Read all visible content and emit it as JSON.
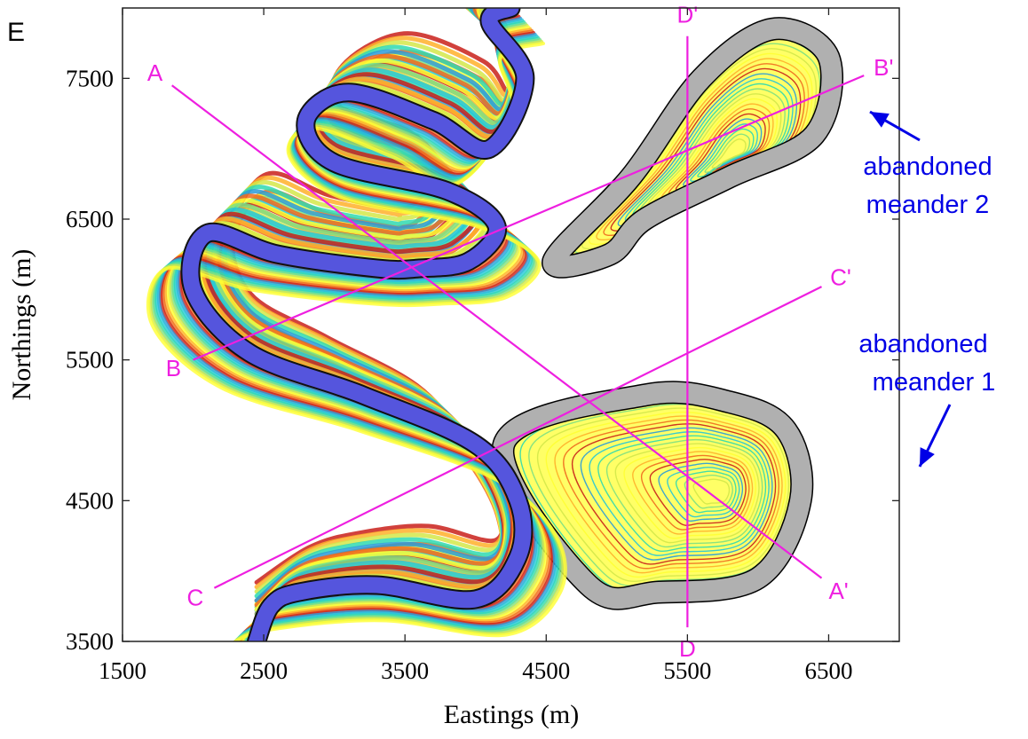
{
  "chart_data": {
    "type": "map",
    "panel_label": "E",
    "xlabel": "Eastings (m)",
    "ylabel": "Northings (m)",
    "xlim": [
      1500,
      7000
    ],
    "ylim": [
      3500,
      8000
    ],
    "xticks": [
      1500,
      2500,
      3500,
      4500,
      5500,
      6500
    ],
    "yticks": [
      3500,
      4500,
      5500,
      6500,
      7500
    ],
    "sections": [
      {
        "name": "A-A'",
        "start_label": "A",
        "end_label": "A'",
        "start": [
          1850,
          7450
        ],
        "end": [
          6450,
          3950
        ]
      },
      {
        "name": "B-B'",
        "start_label": "B",
        "end_label": "B'",
        "start": [
          2000,
          5500
        ],
        "end": [
          6750,
          7520
        ]
      },
      {
        "name": "C-C'",
        "start_label": "C",
        "end_label": "C'",
        "start": [
          2150,
          3880
        ],
        "end": [
          6450,
          6020
        ]
      },
      {
        "name": "D-D'",
        "start_label": "D",
        "end_label": "D'",
        "start": [
          5500,
          3600
        ],
        "end": [
          5500,
          7800
        ]
      }
    ],
    "channel_centerline": [
      [
        2450,
        3500
      ],
      [
        2550,
        3750
      ],
      [
        2750,
        3850
      ],
      [
        3300,
        3900
      ],
      [
        4000,
        3800
      ],
      [
        4300,
        4100
      ],
      [
        4300,
        4500
      ],
      [
        4000,
        4900
      ],
      [
        3200,
        5250
      ],
      [
        2400,
        5550
      ],
      [
        2000,
        6000
      ],
      [
        2100,
        6400
      ],
      [
        2600,
        6250
      ],
      [
        3300,
        6150
      ],
      [
        3600,
        6150
      ],
      [
        3950,
        6200
      ],
      [
        4150,
        6450
      ],
      [
        3800,
        6700
      ],
      [
        3000,
        6900
      ],
      [
        2800,
        7200
      ],
      [
        3100,
        7400
      ],
      [
        3700,
        7200
      ],
      [
        4100,
        7000
      ],
      [
        4350,
        7500
      ],
      [
        4100,
        7900
      ],
      [
        4250,
        8000
      ]
    ],
    "abandoned_meanders": [
      {
        "label": "abandoned meander 1",
        "path": [
          [
            4200,
            4900
          ],
          [
            5200,
            5250
          ],
          [
            5800,
            5200
          ],
          [
            6200,
            5000
          ],
          [
            6300,
            4500
          ],
          [
            6000,
            3950
          ],
          [
            5300,
            3850
          ],
          [
            4800,
            3900
          ]
        ]
      },
      {
        "label": "abandoned meander 2",
        "path": [
          [
            4550,
            6200
          ],
          [
            5100,
            6800
          ],
          [
            5600,
            7500
          ],
          [
            6100,
            7850
          ],
          [
            6500,
            7650
          ],
          [
            6400,
            7100
          ],
          [
            5800,
            6800
          ],
          [
            5200,
            6500
          ],
          [
            4950,
            6250
          ]
        ]
      }
    ],
    "annotations": [
      {
        "line1": "abandoned",
        "line2": "meander 2",
        "target": "abandoned meander 2",
        "color": "#0000e6"
      },
      {
        "line1": "abandoned",
        "line2": "meander 1",
        "target": "abandoned meander 1",
        "color": "#0000e6"
      }
    ],
    "colors": {
      "channel": "#5555dd",
      "abandoned": "#b0b0b0",
      "section_lines": "#ee1fe0",
      "annotation": "#0000e6",
      "scroll_colormap": [
        "#2a9bd8",
        "#25c7d8",
        "#2fd9b0",
        "#7ee082",
        "#d3e84a",
        "#ffff33",
        "#ffb02a",
        "#ef6a1f",
        "#c9201a"
      ]
    }
  }
}
